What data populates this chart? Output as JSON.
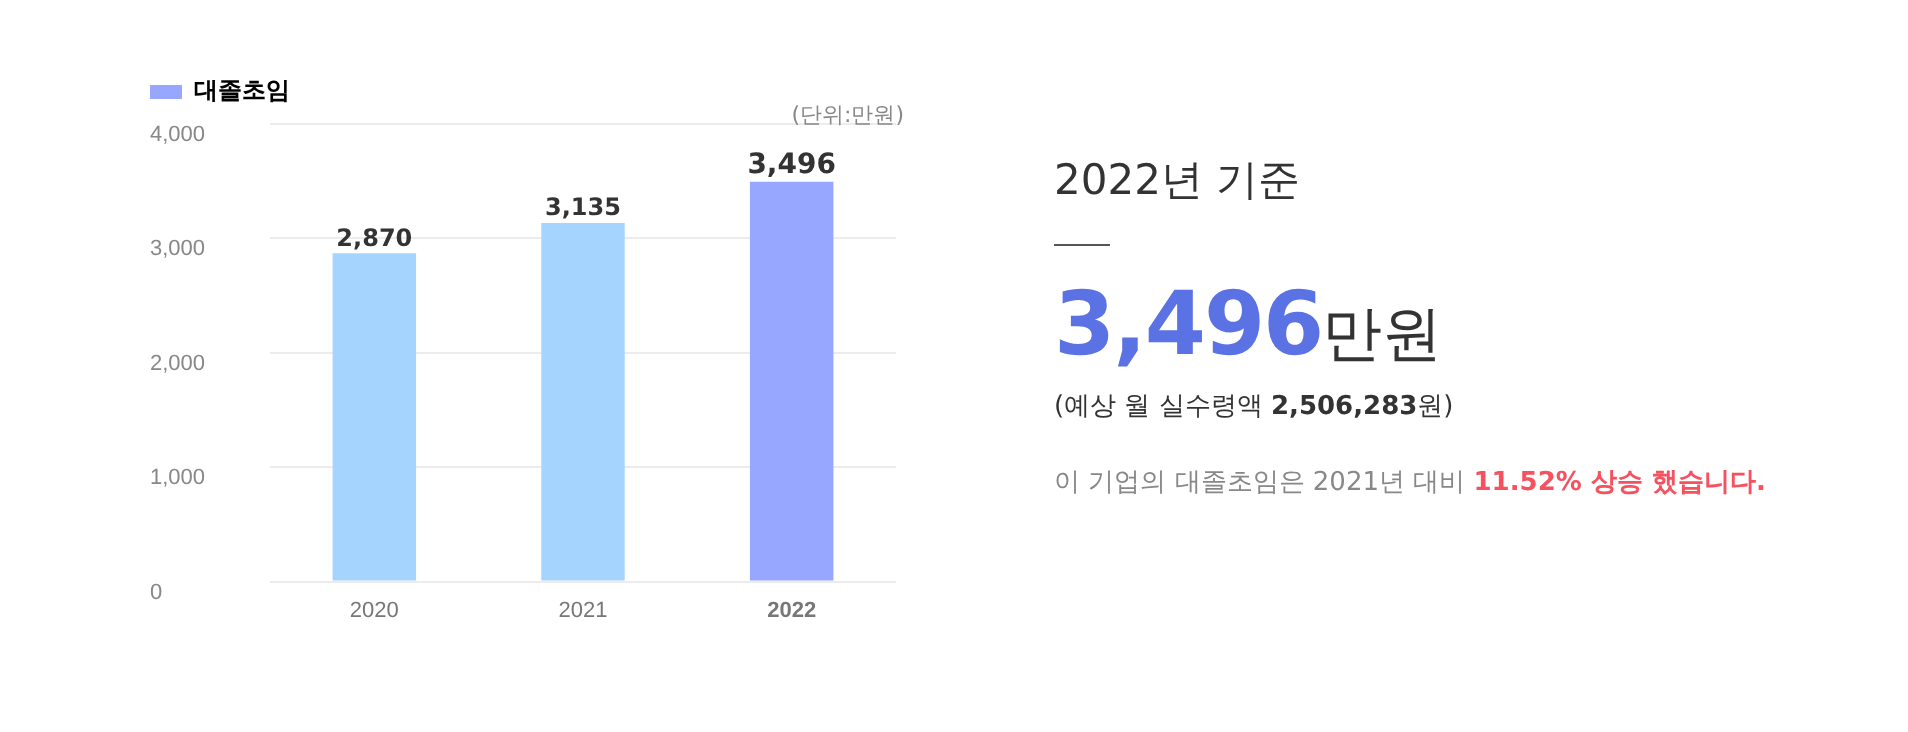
{
  "chart_data": [
    {
      "type": "bar",
      "categories": [
        "2020",
        "2021",
        "2022"
      ],
      "series": [
        {
          "name": "대졸초임",
          "color": "#97a6ff",
          "colors": [
            "#a5d5ff",
            "#a5d5ff",
            "#97a6ff"
          ],
          "values": [
            2870,
            3135,
            3496
          ]
        }
      ],
      "ylim": [
        0,
        4000
      ],
      "yticks": [
        {
          "value": 0,
          "label": "0"
        },
        {
          "value": 1000,
          "label": "1,000"
        },
        {
          "value": 2000,
          "label": "2,000"
        },
        {
          "value": 3000,
          "label": "3,000"
        },
        {
          "value": 4000,
          "label": "4,000"
        }
      ],
      "value_labels": [
        "2,870",
        "3,135",
        "3,496"
      ],
      "grid": "y",
      "legend": "top left",
      "annotations": [
        "(단위:만원)"
      ]
    },
    {
      "type": "other",
      "title": "2022년 기준",
      "annotations": [
        "3,496만원",
        "(예상 월 실수령액 2,506,283원)",
        "이 기업의 대졸초임은 2021년 대비 11.52% 상승 했습니다."
      ]
    }
  ]
}
